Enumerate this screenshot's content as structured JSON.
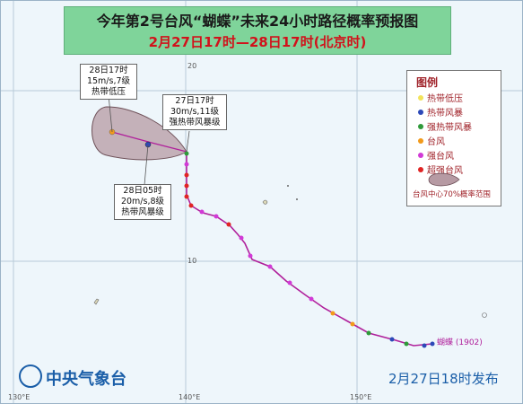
{
  "header": {
    "title": "今年第2号台风“蝴蝶”未来24小时路径概率预报图",
    "subtitle": "2月27日17时—28日17时(北京时)"
  },
  "callouts": [
    {
      "time": "28日17时",
      "wind": "15m/s,7级",
      "level": "热带低压"
    },
    {
      "time": "27日17时",
      "wind": "30m/s,11级",
      "level": "强热带风暴级"
    },
    {
      "time": "28日05时",
      "wind": "20m/s,8级",
      "level": "热带风暴级"
    }
  ],
  "legend": {
    "title": "图例",
    "items": [
      {
        "label": "热带低压",
        "color": "#f2e35b"
      },
      {
        "label": "热带风暴",
        "color": "#2c49b8"
      },
      {
        "label": "强热带风暴",
        "color": "#2f9a3a"
      },
      {
        "label": "台风",
        "color": "#f29a1b"
      },
      {
        "label": "强台风",
        "color": "#d13ad6"
      },
      {
        "label": "超强台风",
        "color": "#e02424"
      }
    ],
    "prob_label": "台风中心70%概率范围"
  },
  "map": {
    "lon_ticks": [
      "130°E",
      "140°E",
      "150°E"
    ],
    "lat_ticks": [
      "20",
      "10"
    ],
    "storm_label": "蝴蝶 (1902)"
  },
  "footer": {
    "agency": "中央气象台",
    "issue_time": "2月27日18时发布"
  }
}
